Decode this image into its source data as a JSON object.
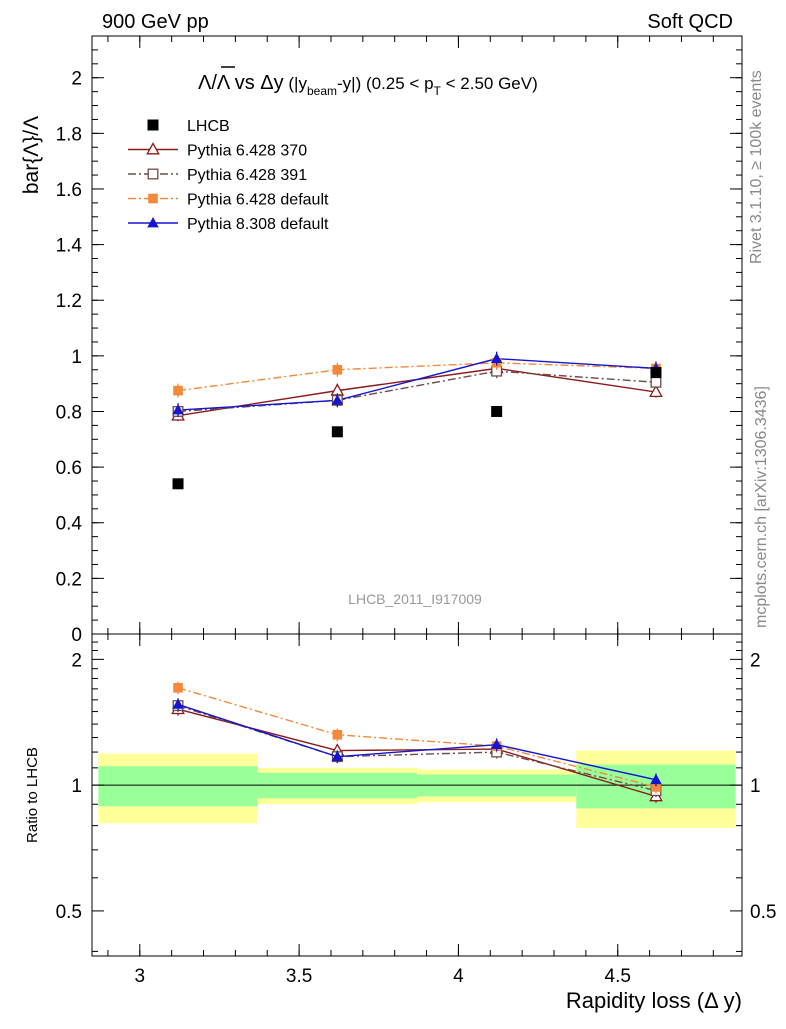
{
  "header": {
    "left": "900 GeV pp",
    "right": "Soft QCD"
  },
  "side": {
    "top": "Rivet 3.1.10, ≥ 100k events",
    "bottom": "mcplots.cern.ch [arXiv:1306.3436]"
  },
  "chart_data": {
    "type": "scatter",
    "title_parts": {
      "num": "Λ",
      "slash": "/Λ vs ",
      "delta": "Δy",
      "open": " (|y",
      "beam": "beam",
      "minus_y": "-y|) (0.25 < p",
      "T": "T",
      "tail": " < 2.50 GeV)"
    },
    "ylabel": "bar{Λ}/Λ",
    "xlabel": "Rapidity loss (Δ y)",
    "ratio_ylabel": "Ratio to LHCB",
    "watermark": "LHCB_2011_I917009",
    "xlim": [
      2.85,
      4.89
    ],
    "ylim": [
      0,
      2.15
    ],
    "ratio_ylim": [
      0.39,
      2.3
    ],
    "ratio_log": true,
    "x_ticks": [
      "3",
      "3.5",
      "4",
      "4.5"
    ],
    "y_ticks": [
      "0",
      "0.2",
      "0.4",
      "0.6",
      "0.8",
      "1",
      "1.2",
      "1.4",
      "1.6",
      "1.8",
      "2"
    ],
    "ratio_ticks": [
      "0.5",
      "1",
      "2"
    ],
    "bins": [
      [
        2.87,
        3.37
      ],
      [
        3.37,
        3.87
      ],
      [
        3.87,
        4.37
      ],
      [
        4.37,
        4.87
      ]
    ],
    "lhcb": {
      "name": "LHCB",
      "x": [
        3.12,
        3.62,
        4.12,
        4.62
      ],
      "y": [
        0.54,
        0.727,
        0.8,
        0.94
      ],
      "band_inner": [
        0.11,
        0.07,
        0.06,
        0.12
      ],
      "band_outer": [
        0.19,
        0.1,
        0.09,
        0.21
      ]
    },
    "series": [
      {
        "name": "Pythia 6.428 370",
        "color": "#8b1a1a",
        "marker": "triangle-open",
        "dash": "none",
        "x": [
          3.12,
          3.62,
          4.12,
          4.62
        ],
        "y": [
          0.785,
          0.875,
          0.955,
          0.87
        ],
        "err": [
          0.02,
          0.025,
          0.025,
          0.02
        ]
      },
      {
        "name": "Pythia 6.428 391",
        "color": "#6e4a4a",
        "marker": "square-open",
        "dash": "dashdot",
        "x": [
          3.12,
          3.62,
          4.12,
          4.62
        ],
        "y": [
          0.8,
          0.84,
          0.945,
          0.905
        ],
        "err": [
          0.02,
          0.02,
          0.025,
          0.02
        ]
      },
      {
        "name": "Pythia 6.428 default",
        "color": "#f5883a",
        "marker": "square",
        "dash": "dashdot",
        "x": [
          3.12,
          3.62,
          4.12,
          4.62
        ],
        "y": [
          0.875,
          0.95,
          0.975,
          0.955
        ],
        "err": [
          0.025,
          0.025,
          0.025,
          0.02
        ]
      },
      {
        "name": "Pythia 8.308 default",
        "color": "#1515d0",
        "marker": "triangle",
        "dash": "none",
        "x": [
          3.12,
          3.62,
          4.12,
          4.62
        ],
        "y": [
          0.805,
          0.84,
          0.99,
          0.955
        ],
        "err": [
          0.025,
          0.025,
          0.025,
          0.025
        ]
      }
    ],
    "ratios": [
      [
        1.52,
        1.21,
        1.22,
        0.94
      ],
      [
        1.55,
        1.17,
        1.2,
        0.97
      ],
      [
        1.71,
        1.32,
        1.24,
        0.99
      ],
      [
        1.56,
        1.17,
        1.25,
        1.03
      ]
    ]
  }
}
